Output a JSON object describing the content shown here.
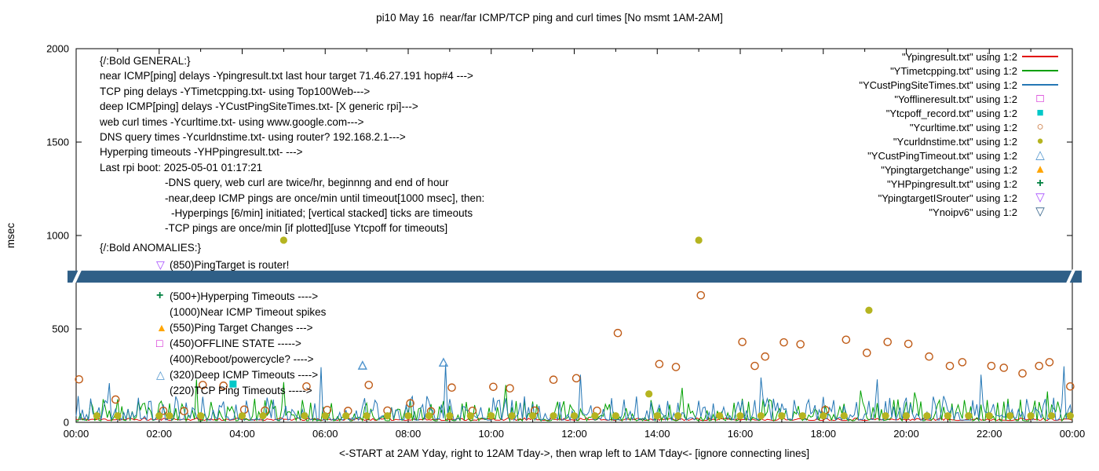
{
  "chart_data": {
    "type": "line",
    "title": "pi10 May 16  near/far ICMP/TCP ping and curl times [No msmt 1AM-2AM]",
    "xlabel": "<-START at 2AM Yday, right to 12AM Tday->, then wrap left to 1AM Tday<- [ignore connecting lines]",
    "ylabel": "msec",
    "x_range_hours": [
      0,
      24
    ],
    "x_tick_step_hours": 2,
    "x_minor_tick_step_hours": 1,
    "x_tick_labels": [
      "00:00",
      "02:00",
      "04:00",
      "06:00",
      "08:00",
      "10:00",
      "12:00",
      "14:00",
      "16:00",
      "18:00",
      "20:00",
      "22:00",
      "00:00"
    ],
    "ylim": [
      0,
      2000
    ],
    "y_ticks": [
      0,
      500,
      1000,
      1500,
      2000
    ],
    "grid": false,
    "legend_position": "top-right-inside",
    "legend": [
      {
        "label": "\"Ypingresult.txt\" using 1:2",
        "sample": "line",
        "color": "#e10600"
      },
      {
        "label": "\"YTimetcpping.txt\" using 1:2",
        "sample": "line",
        "color": "#00a000"
      },
      {
        "label": "\"YCustPingSiteTimes.txt\" using 1:2",
        "sample": "line",
        "color": "#2577b5"
      },
      {
        "label": "\"Yofflineresult.txt\" using 1:2",
        "sample": "square-open",
        "color": "#cc00cc"
      },
      {
        "label": "\"Ytcpoff_record.txt\" using 1:2",
        "sample": "square-fill",
        "color": "#00c8c8"
      },
      {
        "label": "\"Ycurltime.txt\" using 1:2",
        "sample": "circle-open",
        "color": "#bf5b17"
      },
      {
        "label": "\"Ycurldnstime.txt\" using 1:2",
        "sample": "circle-fill",
        "color": "#b5b420"
      },
      {
        "label": "\"YCustPingTimeout.txt\" using 1:2",
        "sample": "tri-up-open",
        "color": "#4f94cd"
      },
      {
        "label": "\"Ypingtargetchange\" using 1:2",
        "sample": "tri-up-fill",
        "color": "#ffa500"
      },
      {
        "label": "\"YHPpingresult.txt\" using 1:2",
        "sample": "plus",
        "color": "#008040"
      },
      {
        "label": "\"YpingtargetISrouter\" using 1:2",
        "sample": "tri-down-open",
        "color": "#a64dff"
      },
      {
        "label": "\"Ynoipv6\" using 1:2",
        "sample": "tri-down-open",
        "color": "#2f5f87"
      }
    ],
    "annotations": {
      "general": {
        "header": "{/:Bold GENERAL:}",
        "lines": [
          {
            "text": "near ICMP[ping] delays -Ypingresult.txt last hour target 71.46.27.191 hop#4 --->",
            "indent": 0
          },
          {
            "text": "TCP ping delays -YTimetcpping.txt- using Top100Web--->",
            "indent": 0
          },
          {
            "text": "deep ICMP[ping] delays -YCustPingSiteTimes.txt- [X generic rpi]--->",
            "indent": 0
          },
          {
            "text": "web curl times -Ycurltime.txt- using www.google.com--->",
            "indent": 0
          },
          {
            "text": "DNS query times -Ycurldnstime.txt- using router? 192.168.2.1--->",
            "indent": 0
          },
          {
            "text": "Hyperping timeouts -YHPpingresult.txt- --->",
            "indent": 0
          },
          {
            "text": "Last rpi boot: 2025-05-01 01:17:21",
            "indent": 0
          },
          {
            "text": "-DNS query, web curl are twice/hr, beginnng and end of hour",
            "indent": 83
          },
          {
            "text": "-near,deep ICMP pings are once/min until timeout[1000 msec], then:",
            "indent": 83
          },
          {
            "text": "-Hyperpings [6/min] initiated; [vertical stacked] ticks are timeouts",
            "indent": 91
          },
          {
            "text": "-TCP pings are once/min [if plotted][use Ytcpoff for timeouts]",
            "indent": 83
          }
        ]
      },
      "anomalies": {
        "header": "{/:Bold ANOMALIES:}",
        "entries": [
          {
            "marker": "tri-down-open",
            "color": "#a64dff",
            "text": "(850)PingTarget is router!"
          },
          {
            "marker": null,
            "color": null,
            "text": ""
          },
          {
            "marker": "plus",
            "color": "#008040",
            "text": "(500+)Hyperping Timeouts ---->"
          },
          {
            "marker": null,
            "color": null,
            "text": "(1000)Near ICMP Timeout spikes"
          },
          {
            "marker": "tri-up-fill",
            "color": "#ffa500",
            "text": "(550)Ping Target Changes --->"
          },
          {
            "marker": "square-open",
            "color": "#cc00cc",
            "text": "(450)OFFLINE STATE ----->"
          },
          {
            "marker": null,
            "color": null,
            "text": "(400)Reboot/powercycle? ---->"
          },
          {
            "marker": "tri-up-open",
            "color": "#4f94cd",
            "text": "(320)Deep ICMP Timeouts ---->"
          },
          {
            "marker": null,
            "color": null,
            "text": "(220)TCP Ping Timeouts ----->"
          }
        ]
      }
    },
    "band": {
      "name": "Ynoipv6 state band",
      "color": "#2f5f87",
      "y_msec": 780,
      "half_height_msec": 32
    },
    "line_series": [
      {
        "name": "Ypingresult.txt",
        "color": "#e10600",
        "base": 10,
        "amp": 14,
        "pow": 1.5,
        "seed": 11,
        "step_hours": 0.05,
        "spikes": []
      },
      {
        "name": "YTimetcpping.txt",
        "color": "#00a000",
        "base": 8,
        "amp": 120,
        "pow": 2.6,
        "seed": 23,
        "step_hours": 0.05,
        "spikes": [
          [
            2.9,
            230
          ],
          [
            5.0,
            215
          ],
          [
            10.35,
            200
          ],
          [
            14.6,
            185
          ],
          [
            18.9,
            170
          ],
          [
            20.2,
            160
          ],
          [
            23.4,
            165
          ]
        ]
      },
      {
        "name": "YCustPingSiteTimes.txt",
        "color": "#2577b5",
        "base": 12,
        "amp": 130,
        "pow": 2.8,
        "seed": 37,
        "step_hours": 0.05,
        "spikes": [
          [
            0.8,
            210
          ],
          [
            5.9,
            295
          ],
          [
            8.9,
            310
          ],
          [
            12.15,
            255
          ],
          [
            16.5,
            240
          ],
          [
            19.3,
            230
          ],
          [
            21.8,
            255
          ],
          [
            23.8,
            300
          ]
        ]
      }
    ],
    "point_series": [
      {
        "name": "Ycurltime.txt",
        "marker": "circle-open",
        "color": "#bf5b17",
        "points": [
          [
            0.07,
            230
          ],
          [
            0.95,
            122
          ],
          [
            2.1,
            62
          ],
          [
            2.6,
            60
          ],
          [
            3.05,
            200
          ],
          [
            3.55,
            196
          ],
          [
            4.05,
            68
          ],
          [
            4.55,
            63
          ],
          [
            5.55,
            192
          ],
          [
            6.05,
            66
          ],
          [
            6.55,
            61
          ],
          [
            7.05,
            200
          ],
          [
            7.5,
            63
          ],
          [
            8.05,
            102
          ],
          [
            8.55,
            59
          ],
          [
            9.05,
            186
          ],
          [
            9.55,
            62
          ],
          [
            10.05,
            190
          ],
          [
            10.45,
            182
          ],
          [
            11.05,
            63
          ],
          [
            11.5,
            228
          ],
          [
            12.05,
            236
          ],
          [
            12.55,
            62
          ],
          [
            13.05,
            478
          ],
          [
            14.05,
            312
          ],
          [
            14.45,
            296
          ],
          [
            15.05,
            680
          ],
          [
            16.05,
            430
          ],
          [
            16.35,
            302
          ],
          [
            16.6,
            352
          ],
          [
            17.05,
            428
          ],
          [
            17.45,
            418
          ],
          [
            18.05,
            66
          ],
          [
            18.55,
            442
          ],
          [
            19.05,
            372
          ],
          [
            19.55,
            430
          ],
          [
            20.05,
            420
          ],
          [
            20.55,
            352
          ],
          [
            21.05,
            302
          ],
          [
            21.35,
            322
          ],
          [
            22.05,
            302
          ],
          [
            22.35,
            292
          ],
          [
            22.8,
            262
          ],
          [
            23.2,
            302
          ],
          [
            23.45,
            322
          ],
          [
            23.95,
            192
          ]
        ]
      },
      {
        "name": "Ycurldnstime.txt",
        "marker": "circle-fill",
        "color": "#b5b420",
        "points": [
          [
            5.0,
            975
          ],
          [
            13.8,
            152
          ],
          [
            15.0,
            975
          ],
          [
            19.1,
            600
          ],
          [
            0.5,
            35
          ],
          [
            1.0,
            35
          ],
          [
            2.0,
            35
          ],
          [
            2.25,
            35
          ],
          [
            3.0,
            35
          ],
          [
            4.0,
            35
          ],
          [
            4.5,
            35
          ],
          [
            5.5,
            35
          ],
          [
            6.0,
            35
          ],
          [
            6.5,
            35
          ],
          [
            7.0,
            35
          ],
          [
            7.5,
            35
          ],
          [
            8.0,
            35
          ],
          [
            8.5,
            35
          ],
          [
            9.0,
            35
          ],
          [
            9.5,
            35
          ],
          [
            10.0,
            35
          ],
          [
            10.5,
            35
          ],
          [
            11.0,
            35
          ],
          [
            11.5,
            35
          ],
          [
            12.0,
            35
          ],
          [
            12.5,
            35
          ],
          [
            13.0,
            35
          ],
          [
            14.0,
            35
          ],
          [
            14.5,
            35
          ],
          [
            15.5,
            35
          ],
          [
            16.0,
            35
          ],
          [
            16.5,
            35
          ],
          [
            17.0,
            35
          ],
          [
            17.5,
            35
          ],
          [
            18.0,
            35
          ],
          [
            18.5,
            35
          ],
          [
            19.5,
            35
          ],
          [
            20.0,
            35
          ],
          [
            20.5,
            35
          ],
          [
            21.0,
            35
          ],
          [
            21.5,
            35
          ],
          [
            22.0,
            35
          ],
          [
            22.5,
            35
          ],
          [
            23.0,
            35
          ],
          [
            23.5,
            35
          ],
          [
            23.95,
            35
          ]
        ]
      },
      {
        "name": "YCustPingTimeout.txt",
        "marker": "tri-up-open",
        "color": "#4f94cd",
        "points": [
          [
            6.9,
            302
          ],
          [
            8.85,
            318
          ]
        ]
      },
      {
        "name": "Ytcpoff_record.txt",
        "marker": "square-fill",
        "color": "#00c8c8",
        "points": [
          [
            3.78,
            205
          ]
        ]
      }
    ]
  }
}
